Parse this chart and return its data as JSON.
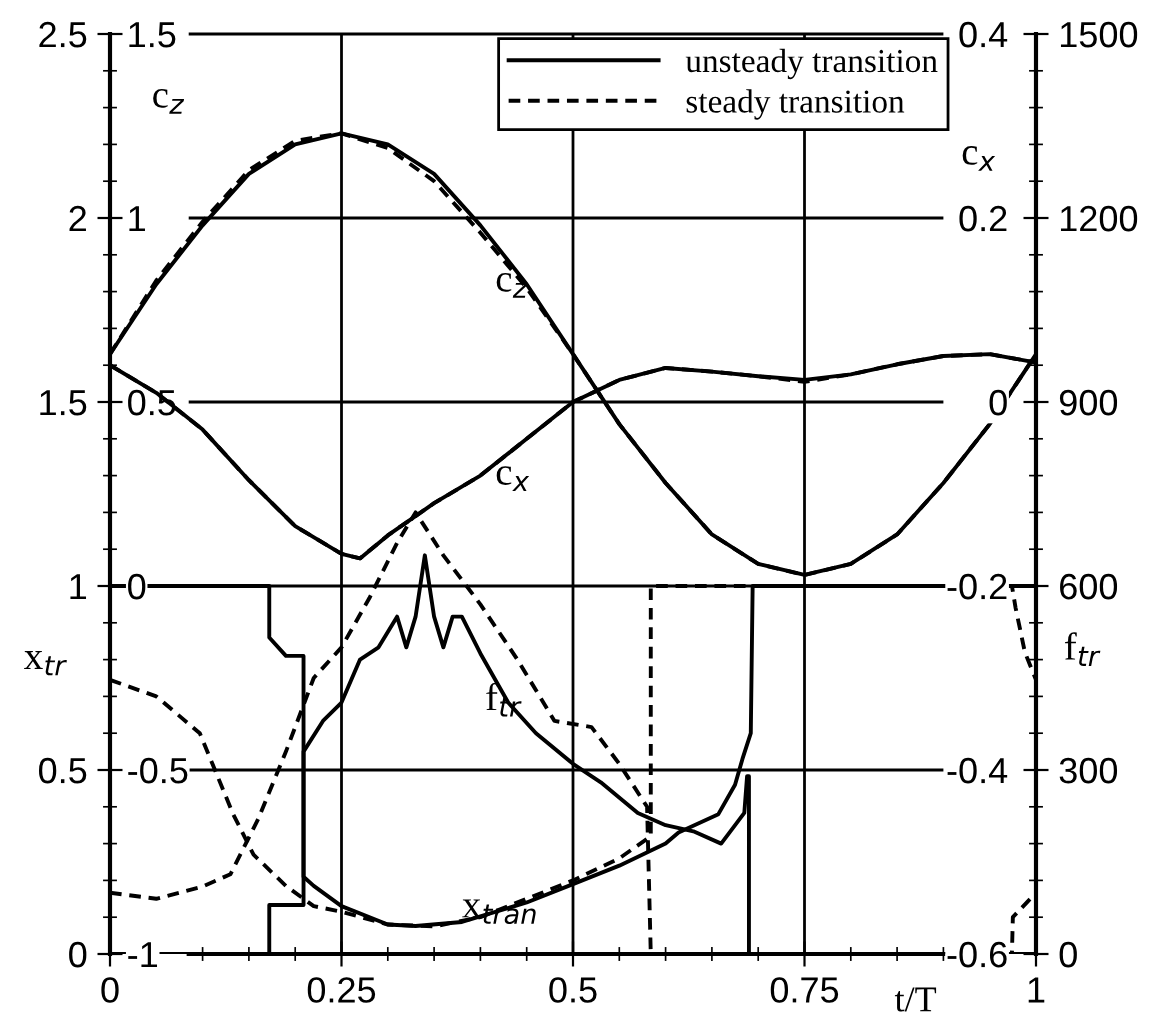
{
  "chart_data": [
    {
      "type": "line",
      "xlabel": "t/T",
      "ylabel": "x$_{tr}$",
      "y2label": "f$_{tr}$",
      "xlim": [
        0,
        1
      ],
      "xticks": [
        0,
        0.25,
        0.5,
        0.75,
        1
      ],
      "ylim": [
        0,
        2.5
      ],
      "yticks": [
        0,
        0.5,
        1,
        1.5,
        2,
        2.5
      ],
      "y2lim": [
        0,
        1500
      ],
      "y2ticks": [
        0,
        300,
        600,
        900,
        1200,
        1500
      ],
      "grid": true,
      "legend": "top right",
      "annotations": [
        "f$_{tr}$",
        "x$_{tran}$"
      ],
      "series": [
        {
          "name": "unsteady transition",
          "color": "#000000",
          "line_style": "solid",
          "x": [
            0,
            0.172,
            0.172,
            0.19,
            0.209,
            0.209,
            0.22,
            0.25,
            0.3,
            0.33,
            0.38,
            0.45,
            0.5,
            0.55,
            0.6,
            0.614,
            0.657,
            0.675,
            0.683,
            0.692,
            0.694,
            1
          ],
          "values": [
            1,
            1,
            0.86,
            0.81,
            0.81,
            0.21,
            0.185,
            0.13,
            0.08,
            0.076,
            0.087,
            0.14,
            0.19,
            0.24,
            0.3,
            0.33,
            0.38,
            0.46,
            0.53,
            0.6,
            1,
            1
          ]
        },
        {
          "name": "steady transition",
          "color": "#000000",
          "line_style": "dashed",
          "x": [
            0,
            0.05,
            0.097,
            0.133,
            0.155,
            0.19,
            0.22,
            0.25,
            0.3,
            0.35,
            0.4,
            0.45,
            0.5,
            0.55,
            0.584,
            0.584,
            0.974,
            0.978,
            0.988,
            1
          ],
          "values": [
            0.745,
            0.7,
            0.6,
            0.38,
            0.27,
            0.185,
            0.13,
            0.115,
            0.08,
            0.075,
            0.1,
            0.15,
            0.2,
            0.26,
            0.32,
            1,
            1,
            0.94,
            0.82,
            0.745
          ]
        },
        {
          "color": "#000000",
          "line_style": "solid",
          "axis": "y2",
          "x": [
            0,
            0.172,
            0.172,
            0.209,
            0.209,
            0.23,
            0.25,
            0.27,
            0.29,
            0.31,
            0.32,
            0.33,
            0.34,
            0.35,
            0.36,
            0.37,
            0.38,
            0.4,
            0.43,
            0.46,
            0.5,
            0.53,
            0.57,
            0.6,
            0.63,
            0.66,
            0.685,
            0.688,
            0.69,
            0.69,
            1
          ],
          "values": [
            0,
            0,
            80,
            80,
            330,
            380,
            410,
            480,
            500,
            550,
            500,
            550,
            650,
            550,
            500,
            550,
            550,
            490,
            410,
            360,
            310,
            280,
            230,
            210,
            200,
            180,
            230,
            290,
            290,
            0,
            0
          ]
        },
        {
          "color": "#000000",
          "line_style": "dashed",
          "axis": "y2",
          "x": [
            0,
            0.05,
            0.1,
            0.13,
            0.16,
            0.19,
            0.22,
            0.25,
            0.28,
            0.31,
            0.33,
            0.36,
            0.4,
            0.44,
            0.48,
            0.52,
            0.55,
            0.58,
            0.584,
            0.974,
            0.975,
            1
          ],
          "values": [
            100,
            90,
            110,
            130,
            220,
            330,
            450,
            500,
            580,
            670,
            720,
            650,
            570,
            480,
            380,
            370,
            310,
            240,
            0,
            0,
            60,
            100
          ]
        }
      ]
    },
    {
      "type": "line",
      "ylabel": "c$_{z}$",
      "y2label": "c$_{x}$",
      "xlim": [
        0,
        1
      ],
      "xticks": [
        0,
        0.25,
        0.5,
        0.75,
        1
      ],
      "tick_labels": "y",
      "ylim": [
        -1,
        1.5
      ],
      "yticks": [
        -1,
        -0.5,
        0,
        0.5,
        1,
        1.5
      ],
      "y2lim": [
        -0.6,
        0.4
      ],
      "y2ticks": [
        -0.6,
        -0.4,
        -0.2,
        0,
        0.2,
        0.4
      ],
      "annotations": [
        "c$_{z}$",
        "c$_{x}$"
      ],
      "series": [
        {
          "color": "#000000",
          "line_style": "solid",
          "x": [
            0,
            0.05,
            0.1,
            0.15,
            0.2,
            0.25,
            0.3,
            0.35,
            0.4,
            0.45,
            0.5,
            0.55,
            0.6,
            0.65,
            0.7,
            0.75,
            0.8,
            0.85,
            0.9,
            0.95,
            1
          ],
          "values": [
            0.63,
            0.82,
            0.98,
            1.12,
            1.2,
            1.23,
            1.2,
            1.12,
            0.98,
            0.82,
            0.63,
            0.44,
            0.28,
            0.14,
            0.06,
            0.03,
            0.06,
            0.14,
            0.28,
            0.44,
            0.63
          ]
        },
        {
          "color": "#000000",
          "line_style": "dashed",
          "x": [
            0,
            0.05,
            0.1,
            0.15,
            0.2,
            0.25,
            0.3,
            0.35,
            0.4,
            0.45,
            0.5,
            0.55,
            0.6,
            0.65,
            0.7,
            0.75,
            0.8,
            0.85,
            0.9,
            0.95,
            1
          ],
          "values": [
            0.63,
            0.83,
            0.99,
            1.13,
            1.21,
            1.23,
            1.19,
            1.1,
            0.96,
            0.81,
            0.63,
            0.44,
            0.28,
            0.14,
            0.06,
            0.03,
            0.06,
            0.14,
            0.28,
            0.44,
            0.63
          ]
        },
        {
          "color": "#000000",
          "line_style": "solid",
          "axis": "y2",
          "x": [
            0,
            0.05,
            0.1,
            0.15,
            0.2,
            0.25,
            0.27,
            0.3,
            0.35,
            0.4,
            0.45,
            0.5,
            0.55,
            0.6,
            0.65,
            0.7,
            0.75,
            0.8,
            0.85,
            0.9,
            0.95,
            1
          ],
          "values": [
            0.04,
            0.01,
            -0.03,
            -0.085,
            -0.135,
            -0.165,
            -0.17,
            -0.145,
            -0.11,
            -0.08,
            -0.04,
            0,
            0.024,
            0.037,
            0.033,
            0.028,
            0.024,
            0.03,
            0.041,
            0.05,
            0.052,
            0.043
          ]
        },
        {
          "color": "#000000",
          "line_style": "dashed",
          "axis": "y2",
          "x": [
            0,
            0.05,
            0.1,
            0.15,
            0.2,
            0.25,
            0.27,
            0.3,
            0.35,
            0.4,
            0.45,
            0.5,
            0.55,
            0.6,
            0.65,
            0.7,
            0.75,
            0.8,
            0.85,
            0.9,
            0.95,
            1
          ],
          "values": [
            0.04,
            0.01,
            -0.03,
            -0.085,
            -0.135,
            -0.165,
            -0.17,
            -0.145,
            -0.11,
            -0.08,
            -0.04,
            0,
            0.024,
            0.037,
            0.033,
            0.028,
            0.022,
            0.03,
            0.041,
            0.05,
            0.052,
            0.043
          ]
        }
      ]
    }
  ]
}
